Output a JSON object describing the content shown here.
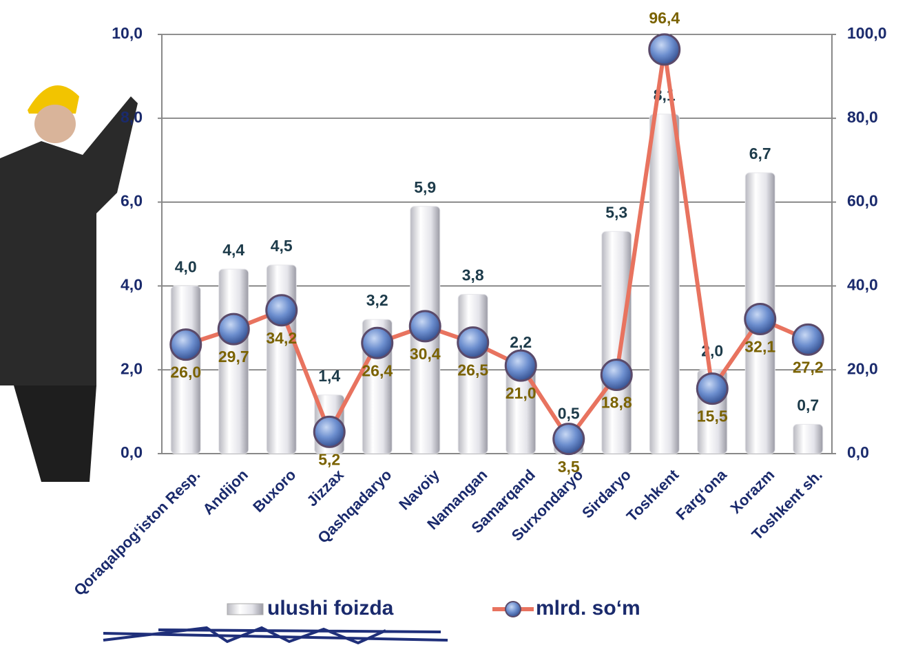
{
  "chart_data": {
    "type": "combo",
    "categories": [
      "Qoraqalpog‘iston Resp.",
      "Andijon",
      "Buxoro",
      "Jizzax",
      "Qashqadaryo",
      "Navoiy",
      "Namangan",
      "Samarqand",
      "Surxondaryo",
      "Sirdaryo",
      "Toshkent",
      "Farg‘ona",
      "Xorazm",
      "Toshkent sh."
    ],
    "series": [
      {
        "name": "ulushi foizda",
        "type": "bar",
        "color": "#e6e6ea",
        "values": [
          4.0,
          4.4,
          4.5,
          1.4,
          3.2,
          5.9,
          3.8,
          2.2,
          0.5,
          5.3,
          8.1,
          2.0,
          6.7,
          0.7
        ],
        "value_labels": [
          "4,0",
          "4,4",
          "4,5",
          "1,4",
          "3,2",
          "5,9",
          "3,8",
          "2,2",
          "0,5",
          "5,3",
          "8,1",
          "2,0",
          "6,7",
          "0,7"
        ]
      },
      {
        "name": "mlrd. so‘m",
        "type": "line",
        "axis": "y2",
        "color": "#e8735f",
        "values": [
          26.0,
          29.7,
          34.2,
          5.2,
          26.4,
          30.4,
          26.5,
          21.0,
          3.5,
          18.8,
          96.4,
          15.5,
          32.1,
          27.2
        ],
        "value_labels": [
          "26,0",
          "29,7",
          "34,2",
          "5,2",
          "26,4",
          "30,4",
          "26,5",
          "21,0",
          "3,5",
          "18,8",
          "96,4",
          "15,5",
          "32,1",
          "27,2"
        ]
      }
    ],
    "ylim": [
      0,
      10
    ],
    "yticks": [
      {
        "value": 0,
        "label": "0,0"
      },
      {
        "value": 2,
        "label": "2,0"
      },
      {
        "value": 4,
        "label": "4,0"
      },
      {
        "value": 6,
        "label": "6,0"
      },
      {
        "value": 8,
        "label": "8,0"
      },
      {
        "value": 10,
        "label": "10,0"
      }
    ],
    "y2lim": [
      0,
      100
    ],
    "y2ticks": [
      {
        "value": 0,
        "label": "0,0"
      },
      {
        "value": 20,
        "label": "20,0"
      },
      {
        "value": 40,
        "label": "40,0"
      },
      {
        "value": 60,
        "label": "60,0"
      },
      {
        "value": 80,
        "label": "80,0"
      },
      {
        "value": 100,
        "label": "100,0"
      }
    ],
    "grid": true
  }
}
